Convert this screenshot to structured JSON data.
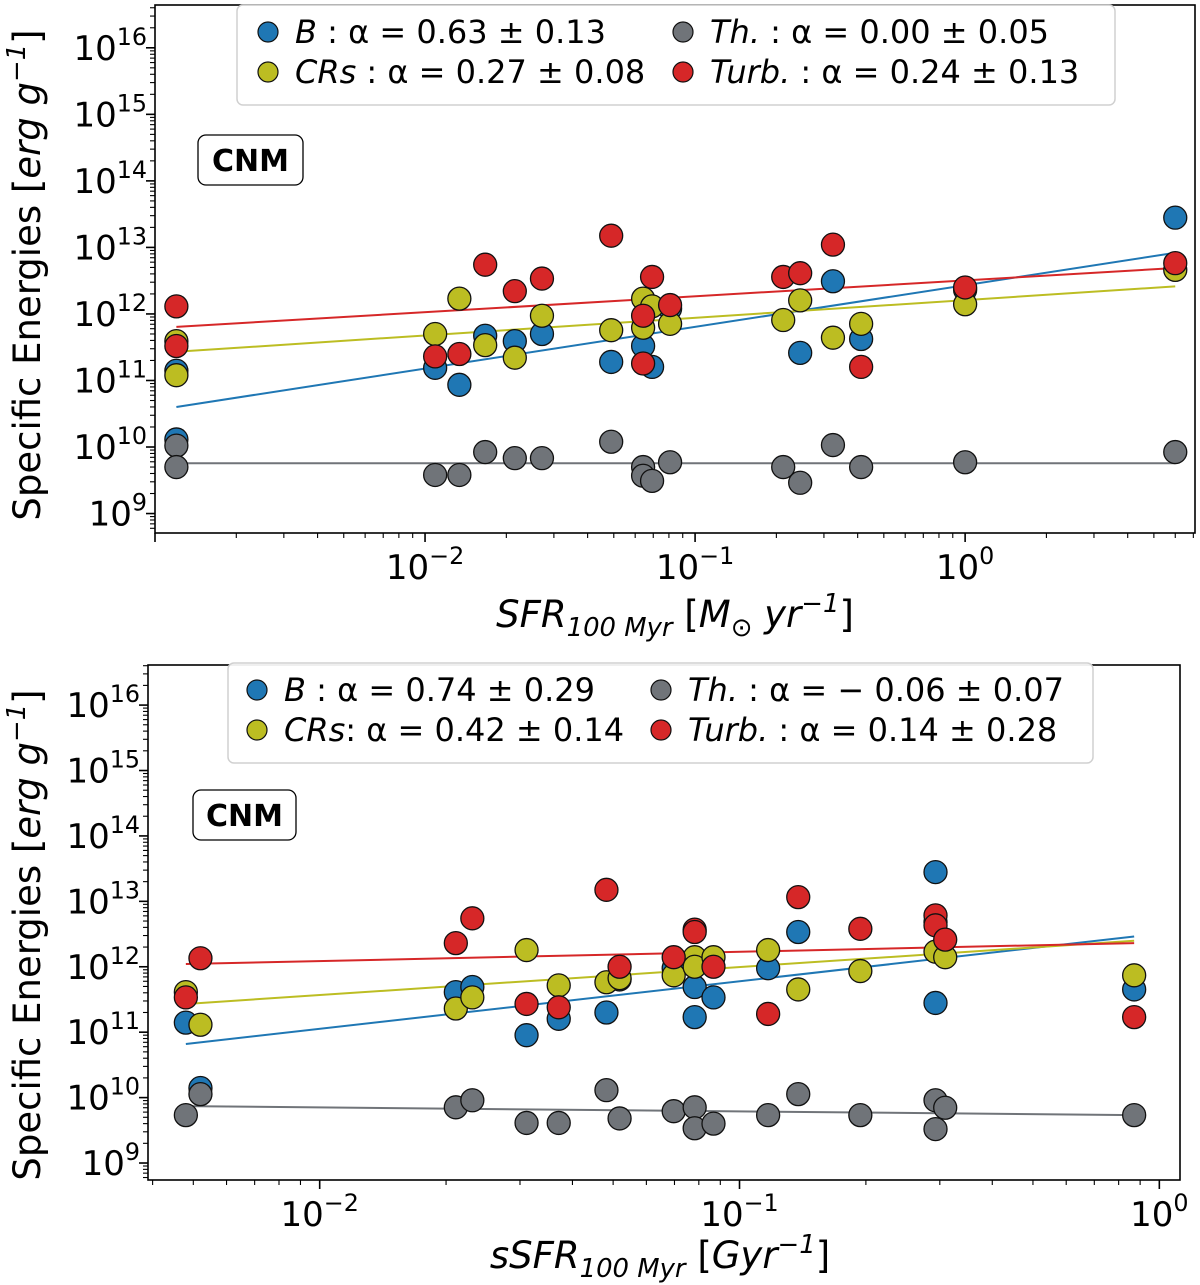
{
  "chart_data": [
    {
      "type": "scatter",
      "panel_label": "CNM",
      "x_scale": "log",
      "y_scale": "log",
      "xlim": [
        0.001,
        7.1
      ],
      "ylim": [
        510000000.0,
        4.4e+16
      ],
      "grid": false,
      "legend_placement": "top-center",
      "xlabel": [
        {
          "t": "SFR",
          "s": "i"
        },
        {
          "t": "100 Myr",
          "s": "sub-i"
        },
        {
          "t": " ["
        },
        {
          "t": "M",
          "s": "i"
        },
        {
          "t": "⊙",
          "s": "sub"
        },
        {
          "t": " yr",
          "s": "i"
        },
        {
          "t": "−1",
          "s": "sup-i"
        },
        {
          "t": "]"
        }
      ],
      "ylabel": [
        {
          "t": "Specific Energies ["
        },
        {
          "t": "erg g",
          "s": "i"
        },
        {
          "t": "−1",
          "s": "sup-i"
        },
        {
          "t": "]"
        }
      ],
      "xticks": [
        0.01,
        0.1,
        1
      ],
      "xtick_labels": [
        {
          "base": "10",
          "exp": "−2"
        },
        {
          "base": "10",
          "exp": "−1"
        },
        {
          "base": "10",
          "exp": "0"
        }
      ],
      "yticks": [
        1000000000.0,
        10000000000.0,
        100000000000.0,
        1000000000000.0,
        10000000000000.0,
        100000000000000.0,
        1000000000000000.0,
        1e+16
      ],
      "ytick_labels": [
        {
          "base": "10",
          "exp": "9"
        },
        {
          "base": "10",
          "exp": "10"
        },
        {
          "base": "10",
          "exp": "11"
        },
        {
          "base": "10",
          "exp": "12"
        },
        {
          "base": "10",
          "exp": "13"
        },
        {
          "base": "10",
          "exp": "14"
        },
        {
          "base": "10",
          "exp": "15"
        },
        {
          "base": "10",
          "exp": "16"
        }
      ],
      "series": [
        {
          "key": "B",
          "legend_name": "B",
          "legend_stat": " : α = 0.63 ± 0.13",
          "color": "#1f77b4",
          "fit": {
            "x": [
              0.0012,
              6.0
            ],
            "y": [
              40000000000.0,
              8300000000000.0
            ]
          },
          "points": [
            [
              0.0012,
              140000000000.0
            ],
            [
              0.0012,
              13000000000.0
            ],
            [
              0.0109,
              155000000000.0
            ],
            [
              0.0134,
              86000000000.0
            ],
            [
              0.0167,
              470000000000.0
            ],
            [
              0.0215,
              390000000000.0
            ],
            [
              0.0271,
              500000000000.0
            ],
            [
              0.0489,
              190000000000.0
            ],
            [
              0.0642,
              330000000000.0
            ],
            [
              0.0693,
              160000000000.0
            ],
            [
              0.0808,
              1200000000000.0
            ],
            [
              0.245,
              260000000000.0
            ],
            [
              0.324,
              3100000000000.0
            ],
            [
              0.412,
              420000000000.0
            ],
            [
              1.0,
              2300000000000.0
            ],
            [
              6.0,
              28000000000000.0
            ]
          ]
        },
        {
          "key": "CRs",
          "legend_name": "CRs",
          "legend_stat": " : α = 0.27 ± 0.08",
          "color": "#bcbd22",
          "fit": {
            "x": [
              0.0012,
              6.0
            ],
            "y": [
              270000000000.0,
              2600000000000.0
            ]
          },
          "points": [
            [
              0.0012,
              390000000000.0
            ],
            [
              0.0012,
              120000000000.0
            ],
            [
              0.0109,
              500000000000.0
            ],
            [
              0.0134,
              1700000000000.0
            ],
            [
              0.0167,
              340000000000.0
            ],
            [
              0.0215,
              220000000000.0
            ],
            [
              0.0271,
              940000000000.0
            ],
            [
              0.0489,
              570000000000.0
            ],
            [
              0.0642,
              1700000000000.0
            ],
            [
              0.0642,
              620000000000.0
            ],
            [
              0.0693,
              1300000000000.0
            ],
            [
              0.0808,
              710000000000.0
            ],
            [
              0.212,
              810000000000.0
            ],
            [
              0.245,
              1600000000000.0
            ],
            [
              0.324,
              440000000000.0
            ],
            [
              0.412,
              710000000000.0
            ],
            [
              1.0,
              1400000000000.0
            ],
            [
              6.0,
              4600000000000.0
            ]
          ]
        },
        {
          "key": "Th",
          "legend_name": "Th.",
          "legend_stat": " : α = 0.00 ± 0.05",
          "color": "#707479",
          "fit": {
            "x": [
              0.0012,
              6.0
            ],
            "y": [
              5700000000.0,
              5700000000.0
            ]
          },
          "points": [
            [
              0.0012,
              10500000000.0
            ],
            [
              0.0012,
              5000000000.0
            ],
            [
              0.0109,
              3800000000.0
            ],
            [
              0.0134,
              3800000000.0
            ],
            [
              0.0167,
              8400000000.0
            ],
            [
              0.0215,
              6800000000.0
            ],
            [
              0.0271,
              6800000000.0
            ],
            [
              0.0489,
              12000000000.0
            ],
            [
              0.0642,
              5000000000.0
            ],
            [
              0.0642,
              3700000000.0
            ],
            [
              0.0693,
              3100000000.0
            ],
            [
              0.0808,
              5900000000.0
            ],
            [
              0.212,
              5000000000.0
            ],
            [
              0.245,
              2900000000.0
            ],
            [
              0.324,
              10700000000.0
            ],
            [
              0.412,
              5000000000.0
            ],
            [
              1.0,
              5900000000.0
            ],
            [
              6.0,
              8400000000.0
            ]
          ]
        },
        {
          "key": "Turb",
          "legend_name": "Turb.",
          "legend_stat": " : α = 0.24 ± 0.13",
          "color": "#d62728",
          "fit": {
            "x": [
              0.0012,
              6.0
            ],
            "y": [
              640000000000.0,
              4900000000000.0
            ]
          },
          "points": [
            [
              0.0012,
              1300000000000.0
            ],
            [
              0.0012,
              330000000000.0
            ],
            [
              0.0109,
              230000000000.0
            ],
            [
              0.0134,
              250000000000.0
            ],
            [
              0.0167,
              5500000000000.0
            ],
            [
              0.0215,
              2200000000000.0
            ],
            [
              0.0271,
              3400000000000.0
            ],
            [
              0.0489,
              15000000000000.0
            ],
            [
              0.0642,
              940000000000.0
            ],
            [
              0.0642,
              180000000000.0
            ],
            [
              0.0693,
              3600000000000.0
            ],
            [
              0.0808,
              1360000000000.0
            ],
            [
              0.212,
              3600000000000.0
            ],
            [
              0.245,
              4100000000000.0
            ],
            [
              0.324,
              11000000000000.0
            ],
            [
              0.412,
              160000000000.0
            ],
            [
              1.0,
              2500000000000.0
            ],
            [
              6.0,
              5800000000000.0
            ]
          ]
        }
      ]
    },
    {
      "type": "scatter",
      "panel_label": "CNM",
      "x_scale": "log",
      "y_scale": "log",
      "xlim": [
        0.0039,
        1.12
      ],
      "ylim": [
        550000000.0,
        4.1e+16
      ],
      "grid": false,
      "legend_placement": "top-center",
      "xlabel": [
        {
          "t": "sSFR",
          "s": "i"
        },
        {
          "t": "100 Myr",
          "s": "sub-i"
        },
        {
          "t": " ["
        },
        {
          "t": "Gyr",
          "s": "i"
        },
        {
          "t": "−1",
          "s": "sup-i"
        },
        {
          "t": "]"
        }
      ],
      "ylabel": [
        {
          "t": "Specific Energies ["
        },
        {
          "t": "erg g",
          "s": "i"
        },
        {
          "t": "−1",
          "s": "sup-i"
        },
        {
          "t": "]"
        }
      ],
      "xticks": [
        0.01,
        0.1,
        1
      ],
      "xtick_labels": [
        {
          "base": "10",
          "exp": "−2"
        },
        {
          "base": "10",
          "exp": "−1"
        },
        {
          "base": "10",
          "exp": "0"
        }
      ],
      "yticks": [
        1000000000.0,
        10000000000.0,
        100000000000.0,
        1000000000000.0,
        10000000000000.0,
        100000000000000.0,
        1000000000000000.0,
        1e+16
      ],
      "ytick_labels": [
        {
          "base": "10",
          "exp": "9"
        },
        {
          "base": "10",
          "exp": "10"
        },
        {
          "base": "10",
          "exp": "11"
        },
        {
          "base": "10",
          "exp": "12"
        },
        {
          "base": "10",
          "exp": "13"
        },
        {
          "base": "10",
          "exp": "14"
        },
        {
          "base": "10",
          "exp": "15"
        },
        {
          "base": "10",
          "exp": "16"
        }
      ],
      "series": [
        {
          "key": "B",
          "legend_name": "B",
          "legend_stat": " : α = 0.74 ± 0.29",
          "color": "#1f77b4",
          "fit": {
            "x": [
              0.0048,
              0.871
            ],
            "y": [
              66000000000.0,
              2900000000000.0
            ]
          },
          "points": [
            [
              0.0048,
              140000000000.0
            ],
            [
              0.0052,
              14000000000.0
            ],
            [
              0.0211,
              410000000000.0
            ],
            [
              0.0231,
              490000000000.0
            ],
            [
              0.0311,
              90000000000.0
            ],
            [
              0.0371,
              160000000000.0
            ],
            [
              0.0482,
              200000000000.0
            ],
            [
              0.0518,
              640000000000.0
            ],
            [
              0.0697,
              950000000000.0
            ],
            [
              0.0782,
              490000000000.0
            ],
            [
              0.0782,
              170000000000.0
            ],
            [
              0.0867,
              340000000000.0
            ],
            [
              0.117,
              950000000000.0
            ],
            [
              0.138,
              3400000000000.0
            ],
            [
              0.293,
              28000000000000.0
            ],
            [
              0.293,
              280000000000.0
            ],
            [
              0.871,
              450000000000.0
            ]
          ]
        },
        {
          "key": "CRs",
          "legend_name": "CRs",
          "legend_stat": ": α = 0.42 ± 0.14",
          "color": "#bcbd22",
          "fit": {
            "x": [
              0.0048,
              0.871
            ],
            "y": [
              270000000000.0,
              2500000000000.0
            ]
          },
          "points": [
            [
              0.0048,
              410000000000.0
            ],
            [
              0.0052,
              130000000000.0
            ],
            [
              0.0211,
              230000000000.0
            ],
            [
              0.0231,
              340000000000.0
            ],
            [
              0.0311,
              1800000000000.0
            ],
            [
              0.0371,
              520000000000.0
            ],
            [
              0.0482,
              580000000000.0
            ],
            [
              0.0518,
              670000000000.0
            ],
            [
              0.0697,
              740000000000.0
            ],
            [
              0.0782,
              1400000000000.0
            ],
            [
              0.0782,
              1000000000000.0
            ],
            [
              0.0867,
              1400000000000.0
            ],
            [
              0.117,
              1800000000000.0
            ],
            [
              0.138,
              450000000000.0
            ],
            [
              0.194,
              860000000000.0
            ],
            [
              0.293,
              4800000000000.0
            ],
            [
              0.293,
              1700000000000.0
            ],
            [
              0.309,
              1400000000000.0
            ],
            [
              0.871,
              740000000000.0
            ]
          ]
        },
        {
          "key": "Th",
          "legend_name": "Th.",
          "legend_stat": " : α = − 0.06 ± 0.07",
          "color": "#707479",
          "fit": {
            "x": [
              0.0048,
              0.871
            ],
            "y": [
              7400000000.0,
              5400000000.0
            ]
          },
          "points": [
            [
              0.0048,
              5400000000.0
            ],
            [
              0.0052,
              11300000000.0
            ],
            [
              0.0211,
              7100000000.0
            ],
            [
              0.0231,
              9100000000.0
            ],
            [
              0.0311,
              4100000000.0
            ],
            [
              0.0371,
              4100000000.0
            ],
            [
              0.0482,
              13000000000.0
            ],
            [
              0.0518,
              4800000000.0
            ],
            [
              0.0697,
              6200000000.0
            ],
            [
              0.0782,
              7100000000.0
            ],
            [
              0.0782,
              3400000000.0
            ],
            [
              0.0867,
              4000000000.0
            ],
            [
              0.117,
              5400000000.0
            ],
            [
              0.138,
              11300000000.0
            ],
            [
              0.194,
              5400000000.0
            ],
            [
              0.293,
              9100000000.0
            ],
            [
              0.293,
              3300000000.0
            ],
            [
              0.309,
              7000000000.0
            ],
            [
              0.871,
              5400000000.0
            ]
          ]
        },
        {
          "key": "Turb",
          "legend_name": "Turb.",
          "legend_stat": " : α = 0.14 ± 0.28",
          "color": "#d62728",
          "fit": {
            "x": [
              0.0048,
              0.871
            ],
            "y": [
              1100000000000.0,
              2300000000000.0
            ]
          },
          "points": [
            [
              0.0048,
              340000000000.0
            ],
            [
              0.0052,
              1350000000000.0
            ],
            [
              0.0211,
              2300000000000.0
            ],
            [
              0.0231,
              5500000000000.0
            ],
            [
              0.0311,
              270000000000.0
            ],
            [
              0.0371,
              240000000000.0
            ],
            [
              0.0482,
              15000000000000.0
            ],
            [
              0.0518,
              1000000000000.0
            ],
            [
              0.0697,
              1400000000000.0
            ],
            [
              0.0782,
              3700000000000.0
            ],
            [
              0.0782,
              3400000000000.0
            ],
            [
              0.0867,
              1000000000000.0
            ],
            [
              0.117,
              190000000000.0
            ],
            [
              0.138,
              11600000000000.0
            ],
            [
              0.194,
              3800000000000.0
            ],
            [
              0.293,
              6100000000000.0
            ],
            [
              0.293,
              4300000000000.0
            ],
            [
              0.309,
              2600000000000.0
            ],
            [
              0.871,
              170000000000.0
            ]
          ]
        }
      ]
    }
  ]
}
